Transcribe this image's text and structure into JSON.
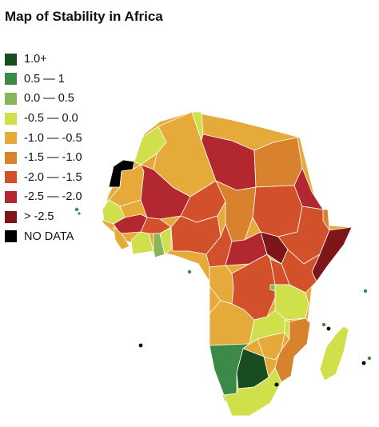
{
  "title": "Map of Stability in Africa",
  "legend": [
    {
      "label": "1.0+",
      "color": "#174d21"
    },
    {
      "label": "0.5 — 1",
      "color": "#3c8a48"
    },
    {
      "label": "0.0 — 0.5",
      "color": "#86b55a"
    },
    {
      "label": "-0.5 — 0.0",
      "color": "#cfe04b"
    },
    {
      "label": "-1.0 — -0.5",
      "color": "#e6aa3a"
    },
    {
      "label": "-1.5 — -1.0",
      "color": "#d9822e"
    },
    {
      "label": "-2.0 — -1.5",
      "color": "#d2502a"
    },
    {
      "label": "-2.5 — -2.0",
      "color": "#b3272f"
    },
    {
      "label": "> -2.5",
      "color": "#7e1518"
    },
    {
      "label": "NO DATA",
      "color": "#000000"
    }
  ]
}
